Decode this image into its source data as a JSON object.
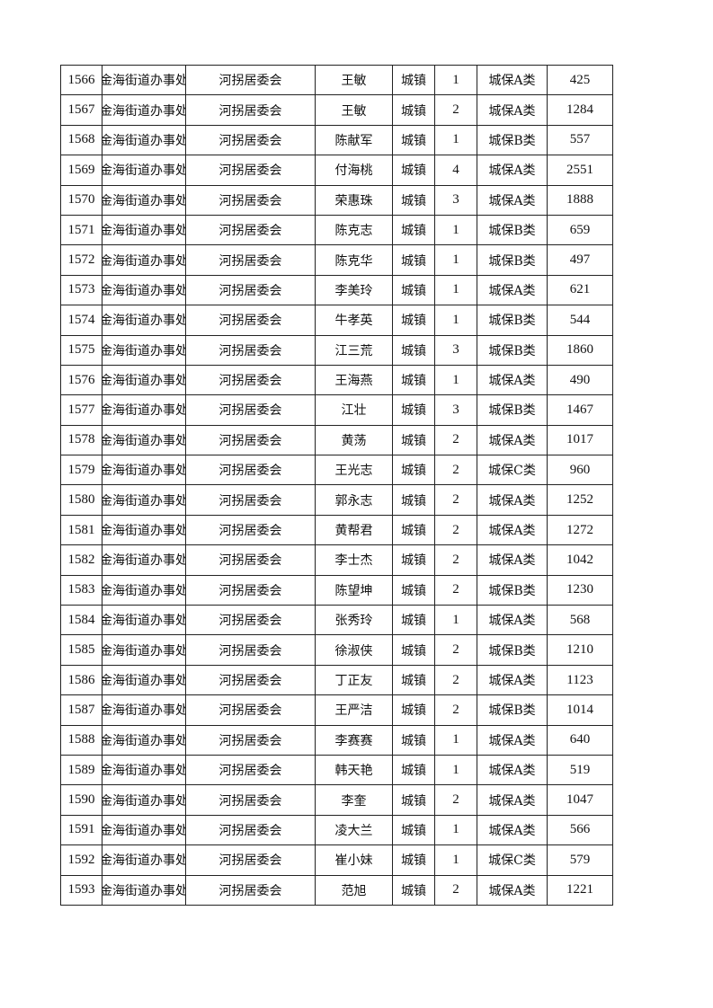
{
  "rows": [
    {
      "id": "1566",
      "street": "金海街道办事处",
      "committee": "河拐居委会",
      "name": "王敏",
      "area": "城镇",
      "count": "1",
      "type": "城保A类",
      "amount": "425"
    },
    {
      "id": "1567",
      "street": "金海街道办事处",
      "committee": "河拐居委会",
      "name": "王敏",
      "area": "城镇",
      "count": "2",
      "type": "城保A类",
      "amount": "1284"
    },
    {
      "id": "1568",
      "street": "金海街道办事处",
      "committee": "河拐居委会",
      "name": "陈献军",
      "area": "城镇",
      "count": "1",
      "type": "城保B类",
      "amount": "557"
    },
    {
      "id": "1569",
      "street": "金海街道办事处",
      "committee": "河拐居委会",
      "name": "付海桃",
      "area": "城镇",
      "count": "4",
      "type": "城保A类",
      "amount": "2551"
    },
    {
      "id": "1570",
      "street": "金海街道办事处",
      "committee": "河拐居委会",
      "name": "荣惠珠",
      "area": "城镇",
      "count": "3",
      "type": "城保A类",
      "amount": "1888"
    },
    {
      "id": "1571",
      "street": "金海街道办事处",
      "committee": "河拐居委会",
      "name": "陈克志",
      "area": "城镇",
      "count": "1",
      "type": "城保B类",
      "amount": "659"
    },
    {
      "id": "1572",
      "street": "金海街道办事处",
      "committee": "河拐居委会",
      "name": "陈克华",
      "area": "城镇",
      "count": "1",
      "type": "城保B类",
      "amount": "497"
    },
    {
      "id": "1573",
      "street": "金海街道办事处",
      "committee": "河拐居委会",
      "name": "李美玲",
      "area": "城镇",
      "count": "1",
      "type": "城保A类",
      "amount": "621"
    },
    {
      "id": "1574",
      "street": "金海街道办事处",
      "committee": "河拐居委会",
      "name": "牛孝英",
      "area": "城镇",
      "count": "1",
      "type": "城保B类",
      "amount": "544"
    },
    {
      "id": "1575",
      "street": "金海街道办事处",
      "committee": "河拐居委会",
      "name": "江三荒",
      "area": "城镇",
      "count": "3",
      "type": "城保B类",
      "amount": "1860"
    },
    {
      "id": "1576",
      "street": "金海街道办事处",
      "committee": "河拐居委会",
      "name": "王海燕",
      "area": "城镇",
      "count": "1",
      "type": "城保A类",
      "amount": "490"
    },
    {
      "id": "1577",
      "street": "金海街道办事处",
      "committee": "河拐居委会",
      "name": "江壮",
      "area": "城镇",
      "count": "3",
      "type": "城保B类",
      "amount": "1467"
    },
    {
      "id": "1578",
      "street": "金海街道办事处",
      "committee": "河拐居委会",
      "name": "黄荡",
      "area": "城镇",
      "count": "2",
      "type": "城保A类",
      "amount": "1017"
    },
    {
      "id": "1579",
      "street": "金海街道办事处",
      "committee": "河拐居委会",
      "name": "王光志",
      "area": "城镇",
      "count": "2",
      "type": "城保C类",
      "amount": "960"
    },
    {
      "id": "1580",
      "street": "金海街道办事处",
      "committee": "河拐居委会",
      "name": "郭永志",
      "area": "城镇",
      "count": "2",
      "type": "城保A类",
      "amount": "1252"
    },
    {
      "id": "1581",
      "street": "金海街道办事处",
      "committee": "河拐居委会",
      "name": "黄帮君",
      "area": "城镇",
      "count": "2",
      "type": "城保A类",
      "amount": "1272"
    },
    {
      "id": "1582",
      "street": "金海街道办事处",
      "committee": "河拐居委会",
      "name": "李士杰",
      "area": "城镇",
      "count": "2",
      "type": "城保A类",
      "amount": "1042"
    },
    {
      "id": "1583",
      "street": "金海街道办事处",
      "committee": "河拐居委会",
      "name": "陈望坤",
      "area": "城镇",
      "count": "2",
      "type": "城保B类",
      "amount": "1230"
    },
    {
      "id": "1584",
      "street": "金海街道办事处",
      "committee": "河拐居委会",
      "name": "张秀玲",
      "area": "城镇",
      "count": "1",
      "type": "城保A类",
      "amount": "568"
    },
    {
      "id": "1585",
      "street": "金海街道办事处",
      "committee": "河拐居委会",
      "name": "徐淑侠",
      "area": "城镇",
      "count": "2",
      "type": "城保B类",
      "amount": "1210"
    },
    {
      "id": "1586",
      "street": "金海街道办事处",
      "committee": "河拐居委会",
      "name": "丁正友",
      "area": "城镇",
      "count": "2",
      "type": "城保A类",
      "amount": "1123"
    },
    {
      "id": "1587",
      "street": "金海街道办事处",
      "committee": "河拐居委会",
      "name": "王严洁",
      "area": "城镇",
      "count": "2",
      "type": "城保B类",
      "amount": "1014"
    },
    {
      "id": "1588",
      "street": "金海街道办事处",
      "committee": "河拐居委会",
      "name": "李赛赛",
      "area": "城镇",
      "count": "1",
      "type": "城保A类",
      "amount": "640"
    },
    {
      "id": "1589",
      "street": "金海街道办事处",
      "committee": "河拐居委会",
      "name": "韩天艳",
      "area": "城镇",
      "count": "1",
      "type": "城保A类",
      "amount": "519"
    },
    {
      "id": "1590",
      "street": "金海街道办事处",
      "committee": "河拐居委会",
      "name": "李奎",
      "area": "城镇",
      "count": "2",
      "type": "城保A类",
      "amount": "1047"
    },
    {
      "id": "1591",
      "street": "金海街道办事处",
      "committee": "河拐居委会",
      "name": "凌大兰",
      "area": "城镇",
      "count": "1",
      "type": "城保A类",
      "amount": "566"
    },
    {
      "id": "1592",
      "street": "金海街道办事处",
      "committee": "河拐居委会",
      "name": "崔小妹",
      "area": "城镇",
      "count": "1",
      "type": "城保C类",
      "amount": "579"
    },
    {
      "id": "1593",
      "street": "金海街道办事处",
      "committee": "河拐居委会",
      "name": "范旭",
      "area": "城镇",
      "count": "2",
      "type": "城保A类",
      "amount": "1221"
    }
  ]
}
